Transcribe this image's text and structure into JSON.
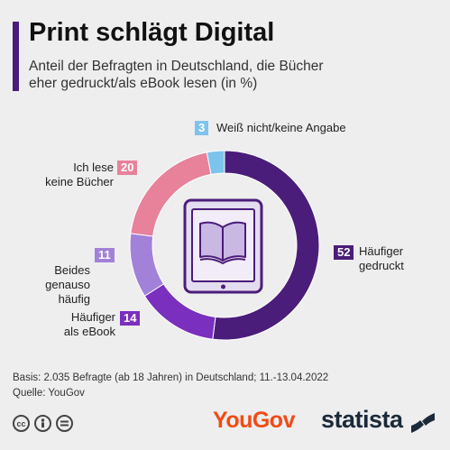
{
  "header": {
    "title": "Print schlägt Digital",
    "subtitle_line1": "Anteil der Befragten in Deutschland, die Bücher",
    "subtitle_line2": "eher gedruckt/als eBook lesen (in %)"
  },
  "chart_data": {
    "type": "pie",
    "donut": true,
    "title": "Print schlägt Digital",
    "slices": [
      {
        "label_lines": [
          "Häufiger",
          "gedruckt"
        ],
        "value": 52,
        "color": "#4b1d7a"
      },
      {
        "label_lines": [
          "Häufiger",
          "als eBook"
        ],
        "value": 14,
        "color": "#7b2fbe"
      },
      {
        "label_lines": [
          "Beides genauso",
          "häufig"
        ],
        "value": 11,
        "color": "#a281d8"
      },
      {
        "label_lines": [
          "Ich lese",
          "keine Bücher"
        ],
        "value": 20,
        "color": "#e8819a"
      },
      {
        "label_lines": [
          "Weiß nicht/keine Angabe"
        ],
        "value": 3,
        "color": "#7cc4ec"
      }
    ]
  },
  "footer": {
    "basis": "Basis: 2.035 Befragte (ab 18 Jahren) in Deutschland; 11.-13.04.2022",
    "source": "Quelle: YouGov"
  },
  "logos": {
    "yougov": "YouGov",
    "statista": "statista",
    "cc_icons": [
      "cc-icon",
      "person-icon",
      "equals-icon"
    ]
  }
}
